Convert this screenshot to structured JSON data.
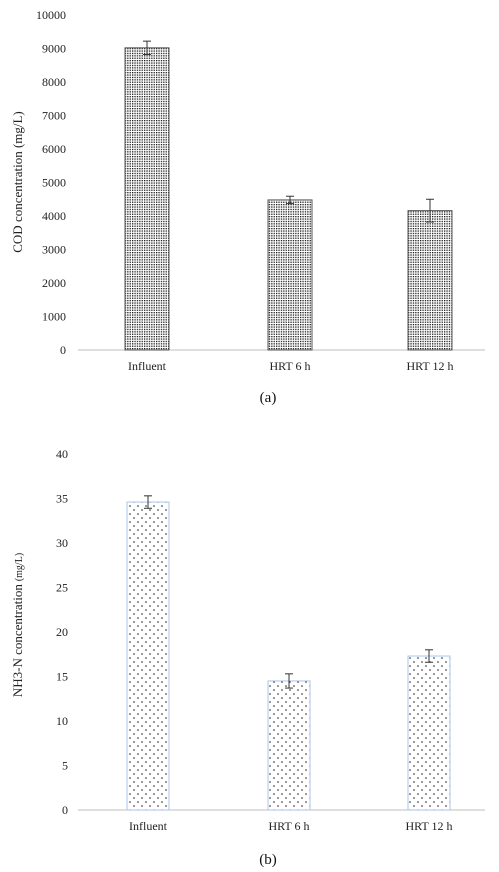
{
  "chart_data": [
    {
      "type": "bar",
      "categories": [
        "Influent",
        "HRT 6 h",
        "HRT 12 h"
      ],
      "values": [
        9020,
        4480,
        4160
      ],
      "error": [
        200,
        110,
        340
      ],
      "ylabel": "COD concentration (mg/L)",
      "ylim": [
        0,
        10000
      ],
      "yticks": [
        0,
        1000,
        2000,
        3000,
        4000,
        5000,
        6000,
        7000,
        8000,
        9000,
        10000
      ],
      "grid": false,
      "caption": "(a)",
      "fill": "dense-dots",
      "bar_color": "#1a1a1a",
      "edge_color": "#555555"
    },
    {
      "type": "bar",
      "categories": [
        "Influent",
        "HRT 6 h",
        "HRT 12 h"
      ],
      "values": [
        34.6,
        14.5,
        17.3
      ],
      "error": [
        0.7,
        0.8,
        0.7
      ],
      "ylabel_main": "NH3-N concentration",
      "ylabel_unit": "(mg/L)",
      "ylim": [
        0,
        40
      ],
      "yticks": [
        0,
        5,
        10,
        15,
        20,
        25,
        30,
        35,
        40
      ],
      "grid": false,
      "caption": "(b)",
      "fill": "sparse-dots",
      "bar_color": "#222222",
      "edge_color": "#a9c6e8"
    }
  ]
}
